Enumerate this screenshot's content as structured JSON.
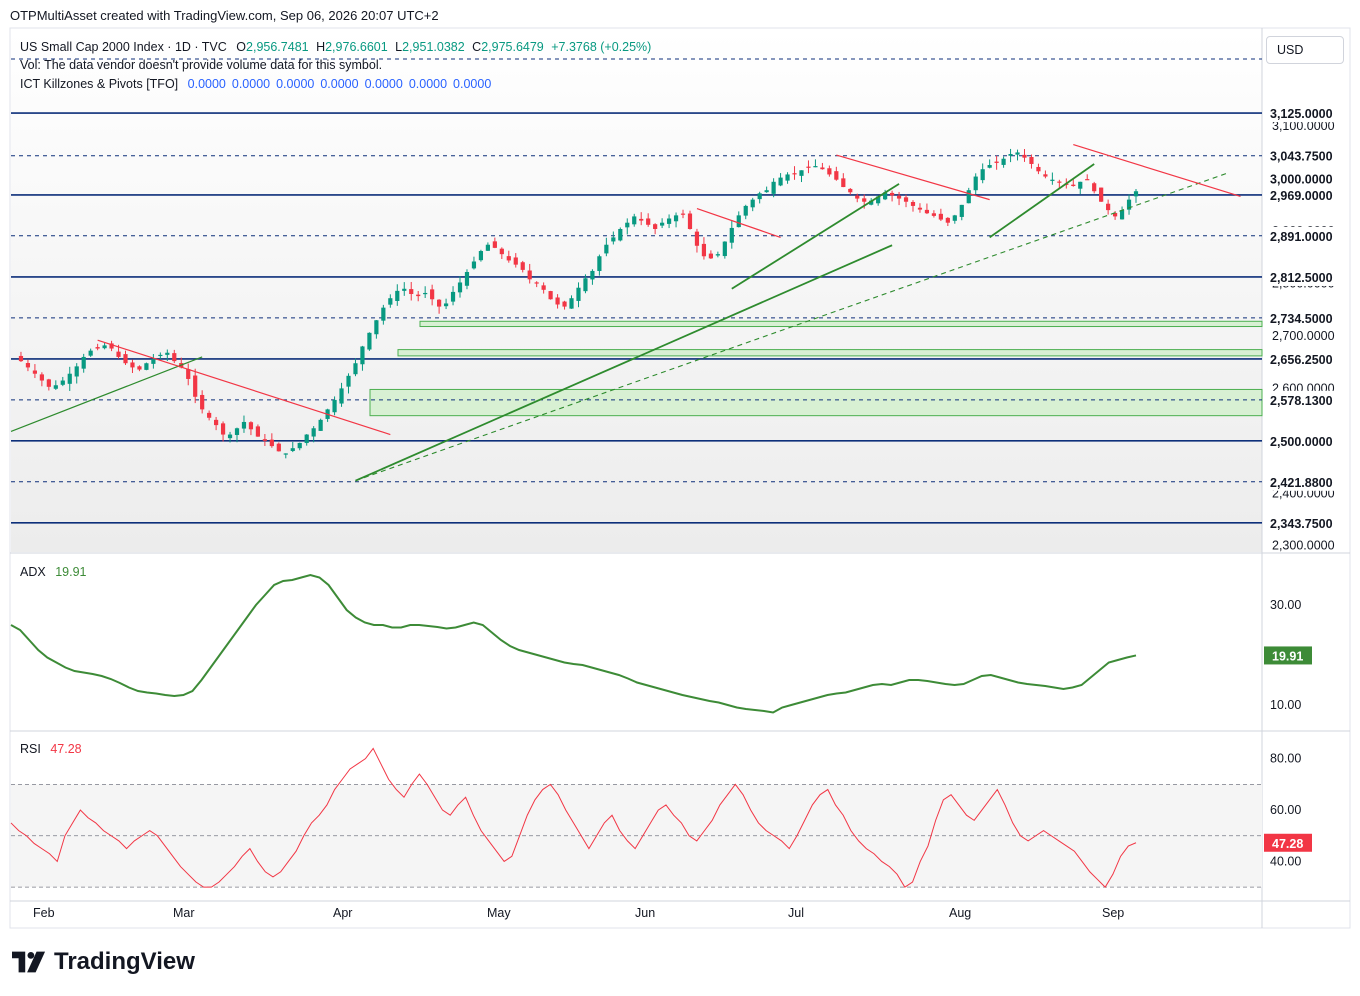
{
  "header": {
    "attribution": "OTPMultiAsset created with TradingView.com, Sep 06, 2026 20:07 UTC+2"
  },
  "legend": {
    "symbol": "US Small Cap 2000 Index · 1D · TVC",
    "open_label": "O",
    "open": "2,956.7481",
    "high_label": "H",
    "high": "2,976.6601",
    "low_label": "L",
    "low": "2,951.0382",
    "close_label": "C",
    "close": "2,975.6479",
    "change": "+7.3768 (+0.25%)",
    "vol_note": "Vol: The data vendor doesn't provide volume data for this symbol.",
    "indicator_name": "ICT Killzones & Pivots [TFO]",
    "indicator_values": [
      "0.0000",
      "0.0000",
      "0.0000",
      "0.0000",
      "0.0000",
      "0.0000",
      "0.0000"
    ]
  },
  "currency": "USD",
  "brand": "TradingView",
  "colors": {
    "up": "#089981",
    "down": "#f23645",
    "level_line": "#0d2f7a",
    "trend_green": "#2e8b2e",
    "trend_red": "#f23645",
    "adx": "#3d8b37",
    "rsi": "#f23645",
    "zone_fill": "#d8f0d3",
    "zone_border": "#4caf50"
  },
  "chart_data": [
    {
      "type": "candlestick",
      "pane": "price",
      "x_tick_labels": [
        "Feb",
        "Mar",
        "Apr",
        "May",
        "Jun",
        "Jul",
        "Aug",
        "Sep"
      ],
      "y_tick_labels": [
        "3,100.0000",
        "3,000.0000",
        "2,900.0000",
        "2,800.0000",
        "2,700.0000",
        "2,600.0000",
        "2,500.0000",
        "2,400.0000",
        "2,300.0000"
      ],
      "ylim": [
        2288,
        3150
      ],
      "level_labels": [
        {
          "value": 3125,
          "label": "3,125.0000",
          "style": "solid"
        },
        {
          "value": 3043.75,
          "label": "3,043.7500",
          "style": "dashed"
        },
        {
          "value": 3000,
          "label": "3,000.0000",
          "style": "plain"
        },
        {
          "value": 2969,
          "label": "2,969.0000",
          "style": "solid"
        },
        {
          "value": 2891,
          "label": "2,891.0000",
          "style": "dashed"
        },
        {
          "value": 2812.5,
          "label": "2,812.5000",
          "style": "solid"
        },
        {
          "value": 2734.5,
          "label": "2,734.5000",
          "style": "dashed"
        },
        {
          "value": 2656.25,
          "label": "2,656.2500",
          "style": "solid"
        },
        {
          "value": 2578.13,
          "label": "2,578.1300",
          "style": "dashed"
        },
        {
          "value": 2500,
          "label": "2,500.0000",
          "style": "solid"
        },
        {
          "value": 2421.88,
          "label": "2,421.8800",
          "style": "dashed"
        },
        {
          "value": 2343.75,
          "label": "2,343.7500",
          "style": "solid"
        }
      ],
      "zones": [
        {
          "from": 2718,
          "to": 2728
        },
        {
          "from": 2662,
          "to": 2674
        },
        {
          "from": 2548,
          "to": 2598
        }
      ],
      "closes": [
        2662,
        2652,
        2640,
        2628,
        2615,
        2603,
        2606,
        2615,
        2628,
        2642,
        2660,
        2672,
        2676,
        2682,
        2676,
        2660,
        2648,
        2640,
        2636,
        2648,
        2656,
        2664,
        2668,
        2652,
        2640,
        2618,
        2584,
        2560,
        2544,
        2530,
        2512,
        2512,
        2524,
        2536,
        2522,
        2508,
        2500,
        2490,
        2480,
        2476,
        2486,
        2496,
        2512,
        2524,
        2540,
        2560,
        2578,
        2600,
        2624,
        2648,
        2680,
        2706,
        2730,
        2754,
        2772,
        2786,
        2790,
        2780,
        2776,
        2782,
        2770,
        2756,
        2762,
        2784,
        2802,
        2822,
        2842,
        2862,
        2874,
        2868,
        2856,
        2844,
        2836,
        2826,
        2808,
        2800,
        2788,
        2770,
        2760,
        2756,
        2772,
        2792,
        2810,
        2824,
        2852,
        2874,
        2888,
        2904,
        2916,
        2928,
        2920,
        2912,
        2904,
        2916,
        2924,
        2930,
        2932,
        2904,
        2872,
        2852,
        2848,
        2856,
        2880,
        2906,
        2930,
        2948,
        2960,
        2972,
        2978,
        2994,
        3002,
        3008,
        3010,
        3016,
        3021,
        3024,
        3018,
        3008,
        2998,
        2984,
        2974,
        2962,
        2956,
        2958,
        2966,
        2974,
        2968,
        2962,
        2956,
        2948,
        2941,
        2934,
        2929,
        2922,
        2916,
        2930,
        2950,
        2978,
        3004,
        3018,
        3026,
        3030,
        3038,
        3047,
        3050,
        3040,
        3028,
        3014,
        3004,
        2998,
        2994,
        2990,
        2986,
        2994,
        2998,
        2976,
        2956,
        2940,
        2928,
        2940,
        2960,
        2976
      ],
      "annotation_dates": {
        "start": "Feb 1 (approx)",
        "end": "Sep 6"
      },
      "series_name": "US Small Cap 2000 Index"
    },
    {
      "type": "line",
      "pane": "ADX",
      "series_name": "ADX",
      "current_value": "19.91",
      "y_tick_labels": [
        "30.00",
        "10.00"
      ],
      "ylim": [
        5,
        40
      ],
      "values": [
        26,
        25,
        23,
        21,
        19.5,
        18.5,
        17.5,
        16.8,
        16.5,
        16.2,
        15.8,
        15.2,
        14.4,
        13.5,
        12.8,
        12.5,
        12.3,
        12.0,
        11.8,
        12.0,
        12.8,
        15.0,
        17.5,
        20.0,
        22.5,
        25.0,
        27.5,
        30.0,
        32.0,
        34.0,
        34.8,
        35.0,
        35.5,
        36.0,
        35.5,
        34.0,
        31.5,
        29.0,
        27.5,
        26.5,
        26.0,
        26.0,
        25.5,
        25.5,
        26.0,
        26.0,
        25.8,
        25.6,
        25.3,
        25.5,
        26.0,
        26.5,
        26.0,
        24.5,
        23.0,
        21.8,
        21.0,
        20.5,
        20.0,
        19.5,
        19.0,
        18.5,
        18.2,
        18.0,
        17.5,
        17.0,
        16.5,
        16.0,
        15.3,
        14.5,
        14.0,
        13.5,
        13.0,
        12.5,
        12.0,
        11.6,
        11.2,
        10.8,
        10.5,
        10.0,
        9.5,
        9.2,
        9.0,
        8.8,
        8.5,
        9.5,
        10.0,
        10.5,
        11.0,
        11.5,
        12.0,
        12.3,
        12.5,
        13.0,
        13.5,
        14.0,
        14.2,
        14.0,
        14.5,
        15.0,
        15.0,
        14.8,
        14.5,
        14.2,
        14.0,
        14.2,
        15.0,
        15.8,
        16.0,
        15.5,
        15.0,
        14.5,
        14.2,
        14.0,
        13.8,
        13.5,
        13.2,
        13.5,
        14.0,
        15.5,
        17.0,
        18.5,
        19.0,
        19.5,
        19.91
      ],
      "label": "ADX"
    },
    {
      "type": "line",
      "pane": "RSI",
      "series_name": "RSI",
      "current_value": "47.28",
      "y_tick_labels": [
        "80.00",
        "60.00",
        "40.00"
      ],
      "ylim": [
        25,
        90
      ],
      "bands": [
        70,
        50,
        30
      ],
      "values": [
        55,
        52,
        50,
        47,
        45,
        43,
        40,
        50,
        55,
        60,
        57,
        55,
        52,
        50,
        48,
        45,
        48,
        50,
        52,
        50,
        46,
        42,
        38,
        35,
        32,
        30,
        30,
        32,
        35,
        38,
        42,
        45,
        40,
        36,
        34,
        36,
        40,
        44,
        50,
        55,
        58,
        62,
        68,
        72,
        76,
        78,
        80,
        84,
        78,
        72,
        68,
        65,
        70,
        74,
        70,
        65,
        60,
        58,
        62,
        65,
        58,
        52,
        48,
        44,
        40,
        42,
        50,
        58,
        64,
        68,
        70,
        66,
        60,
        55,
        50,
        45,
        50,
        55,
        58,
        52,
        48,
        45,
        50,
        55,
        60,
        62,
        58,
        55,
        50,
        48,
        52,
        56,
        62,
        66,
        70,
        66,
        60,
        55,
        52,
        50,
        48,
        45,
        50,
        56,
        62,
        66,
        68,
        62,
        58,
        52,
        48,
        45,
        43,
        40,
        38,
        35,
        30,
        32,
        40,
        46,
        56,
        64,
        66,
        62,
        58,
        56,
        60,
        64,
        68,
        62,
        55,
        50,
        48,
        50,
        52,
        50,
        48,
        46,
        44,
        40,
        36,
        33,
        30,
        35,
        42,
        46,
        47.28
      ],
      "label": "RSI"
    }
  ]
}
